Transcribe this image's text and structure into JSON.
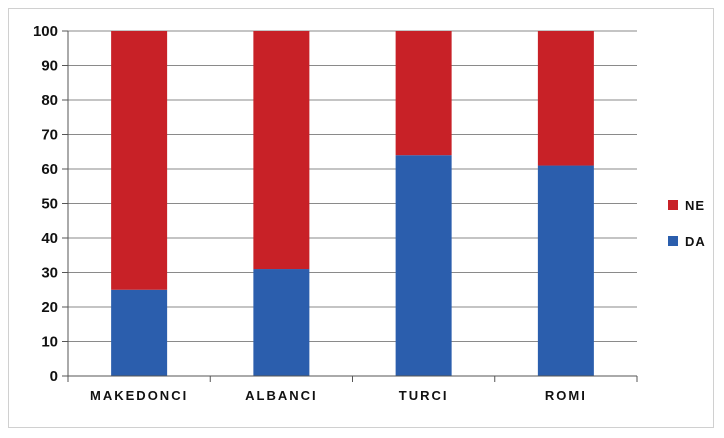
{
  "chart_data": {
    "type": "bar",
    "stacked": true,
    "categories": [
      "MAKEDONCI",
      "ALBANCI",
      "TURCI",
      "ROMI"
    ],
    "series": [
      {
        "name": "DA",
        "color": "#2b5ead",
        "values": [
          25,
          31,
          64,
          61
        ]
      },
      {
        "name": "NE",
        "color": "#c82127",
        "values": [
          75,
          69,
          36,
          39
        ]
      }
    ],
    "ylim": [
      0,
      100
    ],
    "yticks": [
      0,
      10,
      20,
      30,
      40,
      50,
      60,
      70,
      80,
      90,
      100
    ],
    "grid": true,
    "legend": "right",
    "legend_order": [
      "NE",
      "DA"
    ]
  }
}
